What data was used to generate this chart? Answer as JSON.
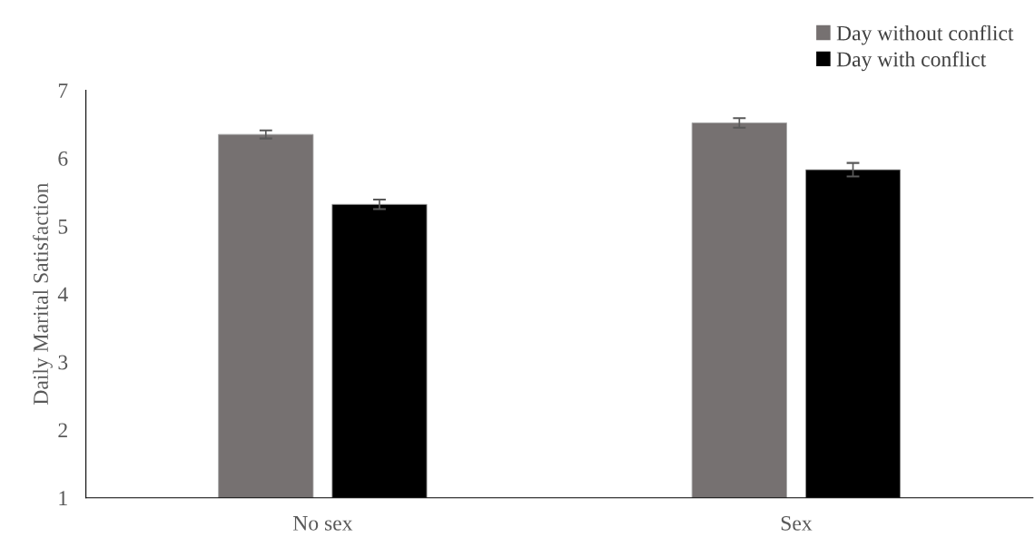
{
  "chart_data": {
    "type": "bar",
    "ylabel": "Daily Marital Satisfaction",
    "categories": [
      "No sex",
      "Sex"
    ],
    "series": [
      {
        "name": "Day without conflict",
        "color": "#767171",
        "values": [
          6.35,
          6.52
        ],
        "errors": [
          0.06,
          0.07
        ]
      },
      {
        "name": "Day with conflict",
        "color": "#000000",
        "values": [
          5.32,
          5.83
        ],
        "errors": [
          0.07,
          0.1
        ]
      }
    ],
    "ylim": [
      1,
      7
    ],
    "yticks": [
      1,
      2,
      3,
      4,
      5,
      6,
      7
    ],
    "grid": false,
    "legend": "top right"
  }
}
